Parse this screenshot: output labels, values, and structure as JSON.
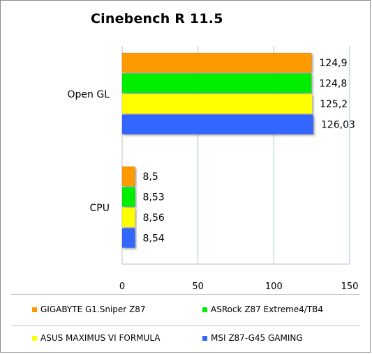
{
  "chart_data": {
    "type": "bar",
    "orientation": "horizontal",
    "title": "Cinebench R 11.5",
    "categories": [
      "Open GL",
      "CPU"
    ],
    "series": [
      {
        "name": "GIGABYTE G1.Sniper Z87",
        "color": "#ff9900",
        "values": [
          124.9,
          8.5
        ],
        "labels": [
          "124,9",
          "8,5"
        ]
      },
      {
        "name": "ASRock Z87 Extreme4/TB4",
        "color": "#00ee00",
        "values": [
          124.8,
          8.53
        ],
        "labels": [
          "124,8",
          "8,53"
        ]
      },
      {
        "name": "ASUS MAXIMUS VI FORMULA",
        "color": "#ffff00",
        "values": [
          125.2,
          8.56
        ],
        "labels": [
          "125,2",
          "8,56"
        ]
      },
      {
        "name": "MSI Z87-G45 GAMING",
        "color": "#3366ff",
        "values": [
          126.03,
          8.54
        ],
        "labels": [
          "126,03",
          "8,54"
        ]
      }
    ],
    "xlim": [
      0,
      150
    ],
    "xticks": [
      0,
      50,
      100,
      150
    ],
    "xtick_labels": [
      "0",
      "50",
      "100",
      "150"
    ],
    "grid": true,
    "legend_position": "bottom"
  }
}
